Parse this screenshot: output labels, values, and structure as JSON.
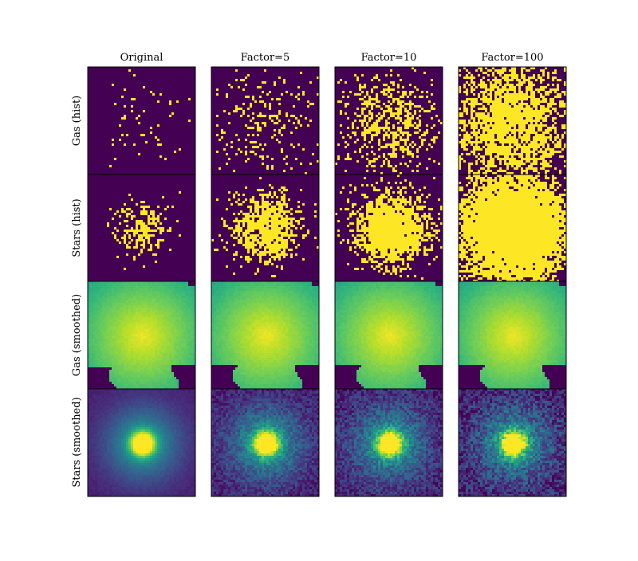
{
  "chart_data": {
    "type": "heatmap",
    "title": "",
    "columns": [
      "Original",
      "Factor=5",
      "Factor=10",
      "Factor=100"
    ],
    "rows": [
      "Gas (hist)",
      "Stars (hist)",
      "Gas (smoothed)",
      "Stars (smoothed)"
    ],
    "colormap": "viridis",
    "axes_ticks": "hidden",
    "panel_descriptions": {
      "hist": "sparse particle histogram, yellow pixels on dark purple background, density increasing with factor",
      "gas_smoothed": "smooth yellow-green field with dark purple lower corners",
      "stars_smoothed": "concentrated bright core fading to blue-purple, grainier at higher factor"
    },
    "panels": [
      {
        "row": 0,
        "col": 0,
        "kind": "hist",
        "particles": 60,
        "spread": 0.22,
        "cx": 0.5,
        "cy": 0.52,
        "seed": 11
      },
      {
        "row": 0,
        "col": 1,
        "kind": "hist",
        "particles": 260,
        "spread": 0.26,
        "cx": 0.5,
        "cy": 0.52,
        "seed": 12
      },
      {
        "row": 0,
        "col": 2,
        "kind": "hist",
        "particles": 650,
        "spread": 0.24,
        "cx": 0.48,
        "cy": 0.52,
        "seed": 13
      },
      {
        "row": 0,
        "col": 3,
        "kind": "hist",
        "particles": 2600,
        "spread": 0.3,
        "cx": 0.48,
        "cy": 0.52,
        "seed": 14
      },
      {
        "row": 1,
        "col": 0,
        "kind": "hist",
        "particles": 230,
        "spread": 0.14,
        "cx": 0.5,
        "cy": 0.5,
        "seed": 21
      },
      {
        "row": 1,
        "col": 1,
        "kind": "hist",
        "particles": 900,
        "spread": 0.16,
        "cx": 0.5,
        "cy": 0.5,
        "seed": 22
      },
      {
        "row": 1,
        "col": 2,
        "kind": "hist",
        "particles": 1600,
        "spread": 0.17,
        "cx": 0.52,
        "cy": 0.5,
        "seed": 23
      },
      {
        "row": 1,
        "col": 3,
        "kind": "hist",
        "particles": 7000,
        "spread": 0.24,
        "cx": 0.5,
        "cy": 0.5,
        "seed": 24
      },
      {
        "row": 2,
        "col": 0,
        "kind": "gas",
        "seed": 31
      },
      {
        "row": 2,
        "col": 1,
        "kind": "gas",
        "seed": 32
      },
      {
        "row": 2,
        "col": 2,
        "kind": "gas",
        "seed": 33
      },
      {
        "row": 2,
        "col": 3,
        "kind": "gas",
        "seed": 34
      },
      {
        "row": 3,
        "col": 0,
        "kind": "stars",
        "noise": 0.02,
        "seed": 41
      },
      {
        "row": 3,
        "col": 1,
        "kind": "stars",
        "noise": 0.1,
        "seed": 42
      },
      {
        "row": 3,
        "col": 2,
        "kind": "stars",
        "noise": 0.12,
        "seed": 43
      },
      {
        "row": 3,
        "col": 3,
        "kind": "stars",
        "noise": 0.16,
        "seed": 44
      }
    ]
  }
}
